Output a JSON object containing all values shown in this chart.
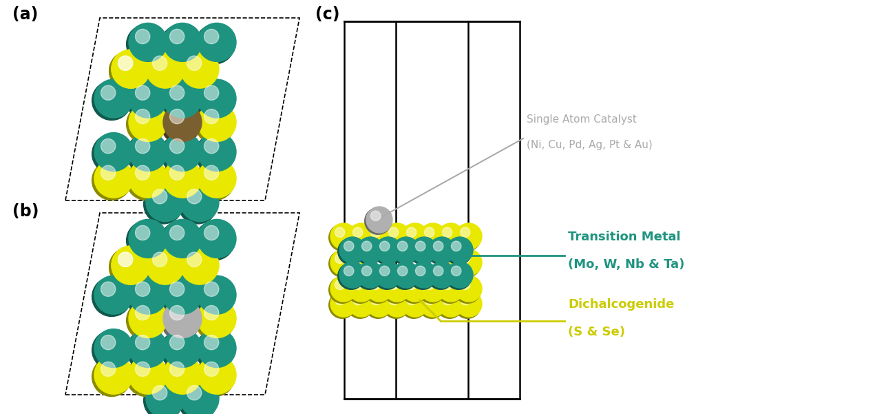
{
  "bg_color": "#ffffff",
  "label_a": "(a)",
  "label_b": "(b)",
  "label_c": "(c)",
  "teal_color": "#1e9480",
  "yellow_color": "#e8e800",
  "gray_color": "#b0b0b0",
  "dark_gold_color": "#7a6030",
  "annotation_sac_color": "#aaaaaa",
  "annotation_tm_color": "#1e9480",
  "annotation_dc_color": "#cccc00",
  "sac_label_line1": "Single Atom Catalyst",
  "sac_label_line2": "(Ni, Cu, Pd, Ag, Pt & Au)",
  "tm_label_line1": "Transition Metal",
  "tm_label_line2": "(Mo, W, Nb & Ta)",
  "dc_label_line1": "Dichalcogenide",
  "dc_label_line2": "(S & Se)"
}
